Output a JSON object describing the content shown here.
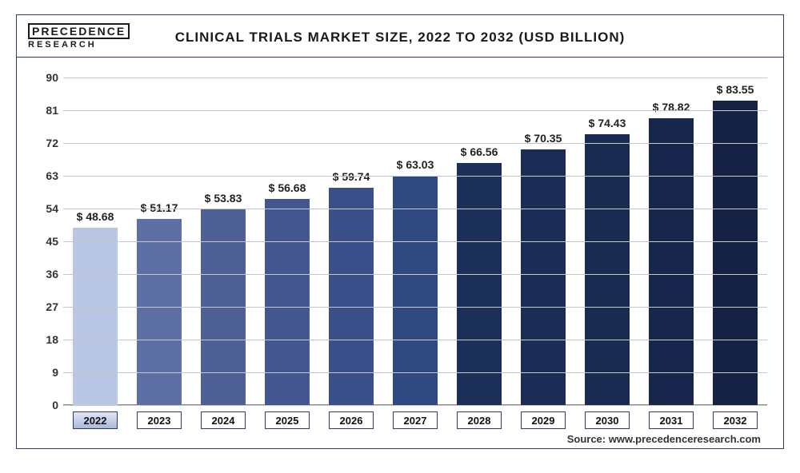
{
  "logo": {
    "top": "PRECEDENCE",
    "bottom": "RESEARCH"
  },
  "chart": {
    "type": "bar",
    "title": "CLINICAL TRIALS MARKET SIZE, 2022 TO 2032 (USD BILLION)",
    "title_fontsize": 17,
    "categories": [
      "2022",
      "2023",
      "2024",
      "2025",
      "2026",
      "2027",
      "2028",
      "2029",
      "2030",
      "2031",
      "2032"
    ],
    "values": [
      48.68,
      51.17,
      53.83,
      56.68,
      59.74,
      63.03,
      66.56,
      70.35,
      74.43,
      78.82,
      83.55
    ],
    "value_labels": [
      "$ 48.68",
      "$ 51.17",
      "$ 53.83",
      "$ 56.68",
      "$ 59.74",
      "$ 63.03",
      "$ 66.56",
      "$ 70.35",
      "$ 74.43",
      "$ 78.82",
      "$ 83.55"
    ],
    "bar_colors": [
      "#b9c6e4",
      "#5d6fa3",
      "#4f6096",
      "#445690",
      "#3b4f8b",
      "#2f4a80",
      "#1c2f59",
      "#1b2d55",
      "#1a2b52",
      "#17264a",
      "#152244"
    ],
    "ylim": [
      0,
      90
    ],
    "ytick_step": 9,
    "grid_color": "#c8c8c8",
    "border_color": "#2b3a67",
    "background_color": "#ffffff",
    "label_fontsize": 14,
    "bar_width_ratio": 0.7,
    "first_label_highlight_bg": "linear-gradient(to bottom,#dfe6f5,#aab9da)"
  },
  "source": "Source: www.precedenceresearch.com"
}
